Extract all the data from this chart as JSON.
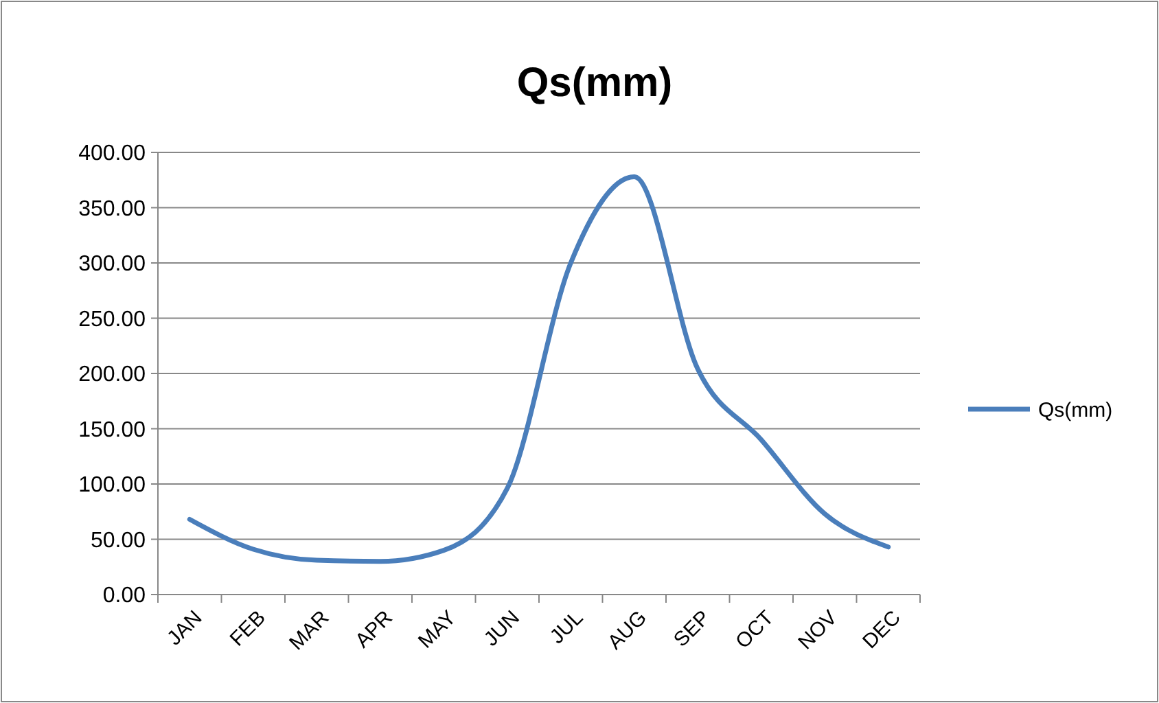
{
  "chart_data": {
    "type": "line",
    "title": "Qs(mm)",
    "categories": [
      "JAN",
      "FEB",
      "MAR",
      "APR",
      "MAY",
      "JUN",
      "JUL",
      "AUG",
      "SEP",
      "OCT",
      "NOV",
      "DEC"
    ],
    "series": [
      {
        "name": "Qs(mm)",
        "color": "#4a7ebb",
        "values": [
          68,
          41,
          31,
          30,
          40,
          96,
          300,
          378,
          204,
          140,
          73,
          43
        ]
      }
    ],
    "ylim": [
      0,
      400
    ],
    "yticks": [
      {
        "value": 0,
        "label": "0.00"
      },
      {
        "value": 50,
        "label": "50.00"
      },
      {
        "value": 100,
        "label": "100.00"
      },
      {
        "value": 150,
        "label": "150.00"
      },
      {
        "value": 200,
        "label": "200.00"
      },
      {
        "value": 250,
        "label": "250.00"
      },
      {
        "value": 300,
        "label": "300.00"
      },
      {
        "value": 350,
        "label": "350.00"
      },
      {
        "value": 400,
        "label": "400.00"
      }
    ],
    "grid": "y",
    "legend": "right",
    "marker": "none",
    "line_style": "solid"
  }
}
